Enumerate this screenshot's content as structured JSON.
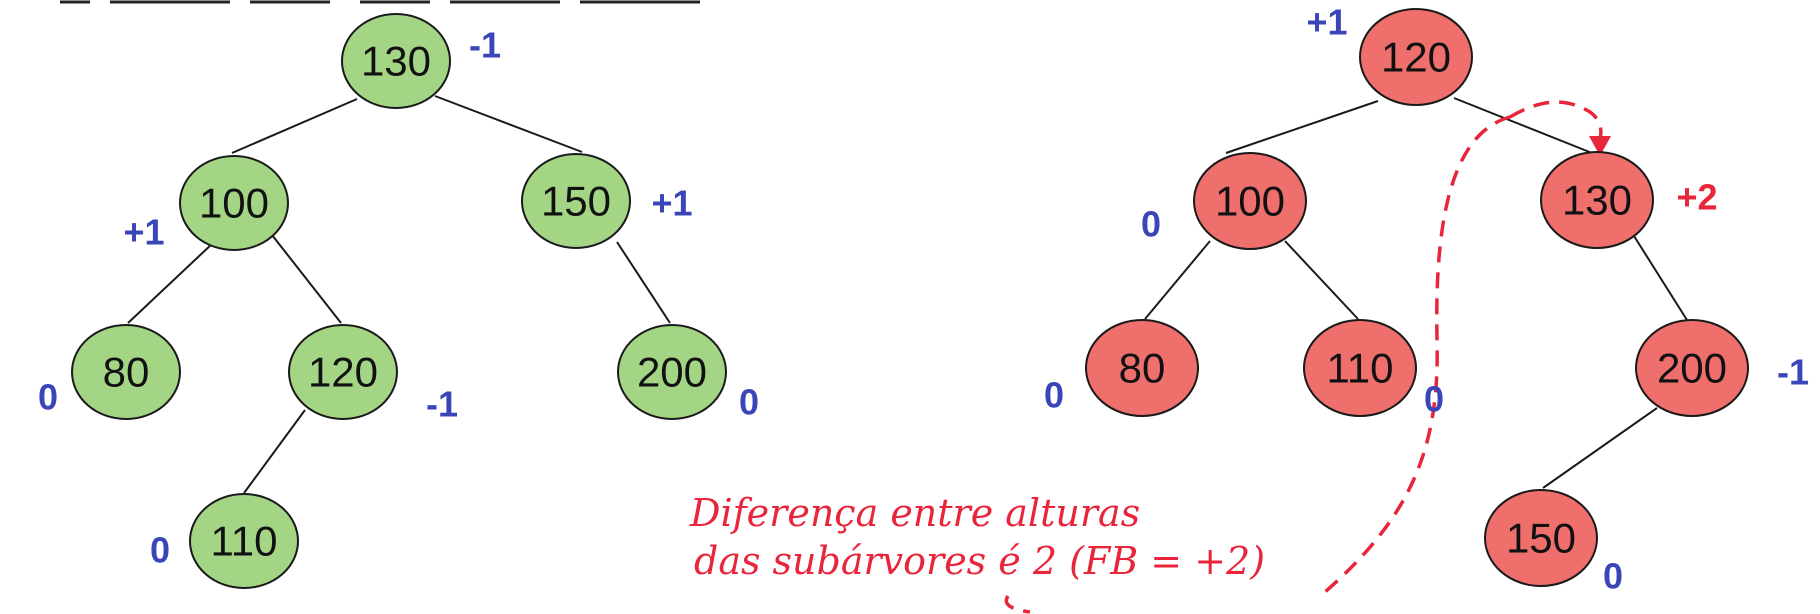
{
  "left_tree": {
    "nodes": [
      {
        "id": "l130",
        "value": "130",
        "bf": "-1"
      },
      {
        "id": "l100",
        "value": "100",
        "bf": "+1"
      },
      {
        "id": "l150",
        "value": "150",
        "bf": "+1"
      },
      {
        "id": "l80",
        "value": "80",
        "bf": "0"
      },
      {
        "id": "l120",
        "value": "120",
        "bf": "-1"
      },
      {
        "id": "l200",
        "value": "200",
        "bf": "0"
      },
      {
        "id": "l110",
        "value": "110",
        "bf": "0"
      }
    ]
  },
  "right_tree": {
    "nodes": [
      {
        "id": "r120",
        "value": "120",
        "bf": "+1"
      },
      {
        "id": "r100",
        "value": "100",
        "bf": "0"
      },
      {
        "id": "r130",
        "value": "130",
        "bf": "+2"
      },
      {
        "id": "r80",
        "value": "80",
        "bf": "0"
      },
      {
        "id": "r110",
        "value": "110",
        "bf": "0"
      },
      {
        "id": "r200",
        "value": "200",
        "bf": "-1"
      },
      {
        "id": "r150",
        "value": "150",
        "bf": "0"
      }
    ]
  },
  "annotation": {
    "line1": "Diferença entre alturas",
    "line2": "das subárvores é 2 (FB = +2)"
  },
  "colors": {
    "left_node_fill": "#a3d585",
    "right_node_fill": "#ef6f6c",
    "balance_factor": "#3a45b8",
    "alert": "#e8253a"
  }
}
